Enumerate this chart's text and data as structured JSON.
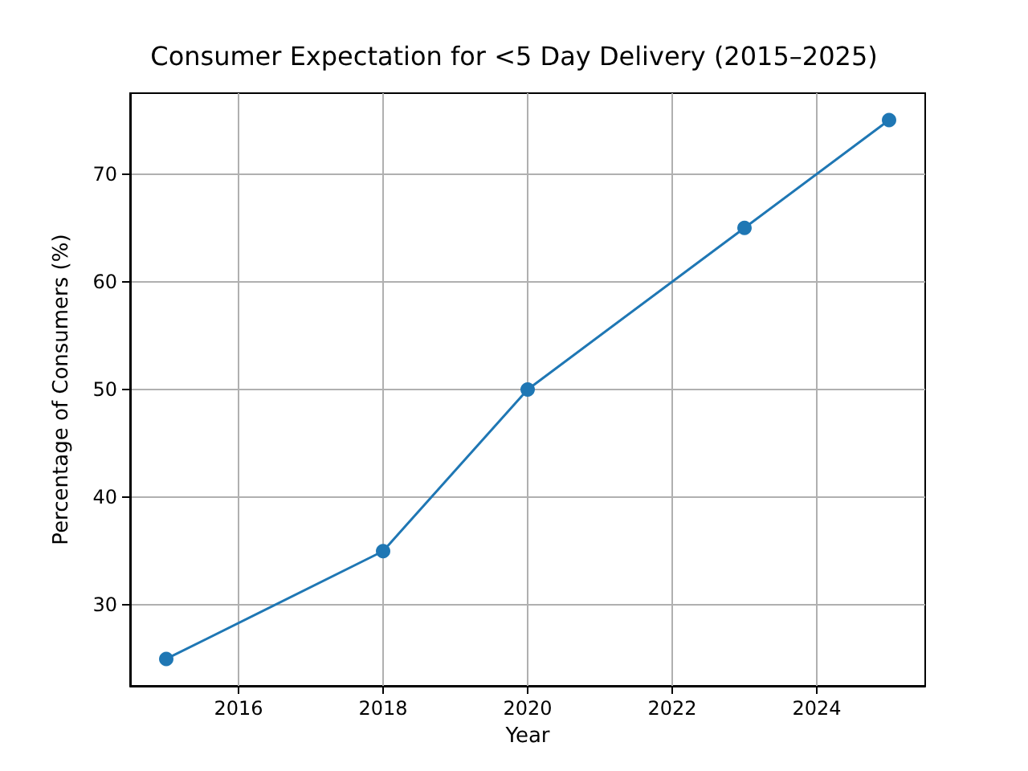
{
  "chart_data": {
    "type": "line",
    "title": "Consumer Expectation for <5 Day Delivery (2015–2025)",
    "xlabel": "Year",
    "ylabel": "Percentage of Consumers (%)",
    "x": [
      2015,
      2018,
      2020,
      2023,
      2025
    ],
    "series": [
      {
        "color": "#1f77b4",
        "values": [
          25,
          35,
          50,
          65,
          75
        ]
      }
    ],
    "xlim": [
      2014.5,
      2025.5
    ],
    "xticks": [
      2016,
      2018,
      2020,
      2022,
      2024
    ],
    "ylim": [
      22.5,
      77.5
    ],
    "yticks": [
      30,
      40,
      50,
      60,
      70
    ],
    "grid": true,
    "marker": "circle",
    "line_style": "solid"
  }
}
